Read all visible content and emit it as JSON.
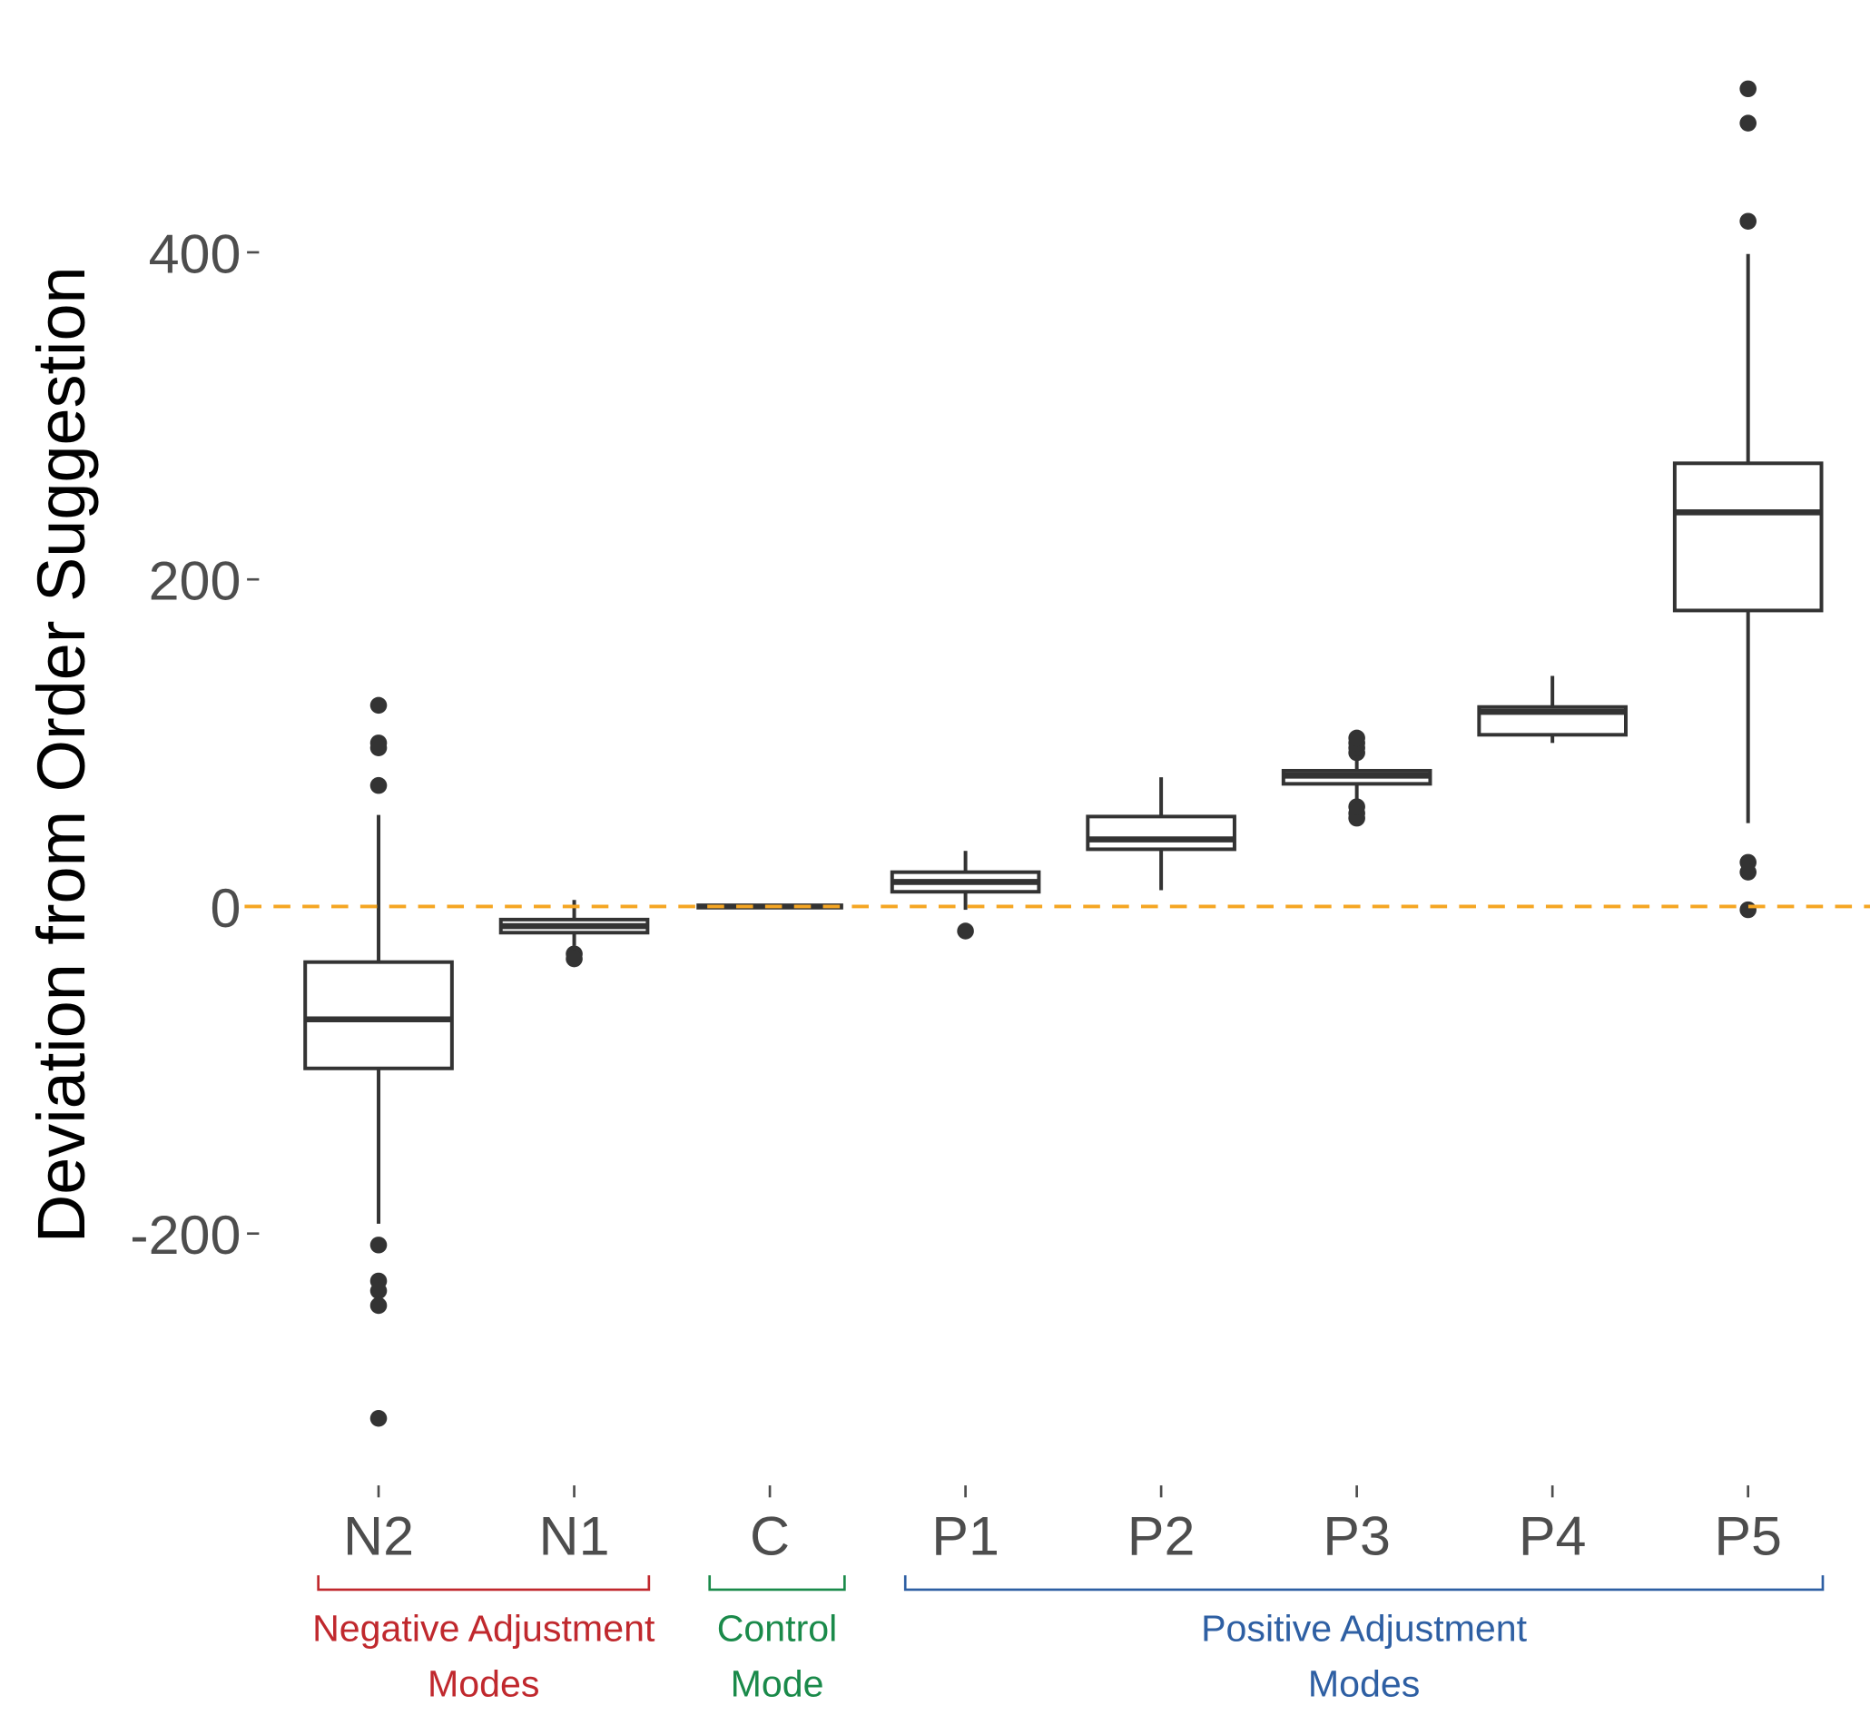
{
  "chart_data": {
    "type": "box",
    "ylabel": "Deviation from Order Suggestion",
    "categories": [
      "N2",
      "N1",
      "C",
      "P1",
      "P2",
      "P3",
      "P4",
      "P5"
    ],
    "boxes": [
      {
        "min": -194,
        "q1": -99,
        "median": -69,
        "q3": -34,
        "max": 56,
        "outliers": [
          123,
          100,
          97,
          74,
          -207,
          -229,
          -235,
          -244,
          -313
        ]
      },
      {
        "min": -24,
        "q1": -16,
        "median": -12,
        "q3": -8,
        "max": 4,
        "outliers": [
          -29,
          -32
        ]
      },
      {
        "min": 0,
        "q1": 0,
        "median": 0,
        "q3": 0,
        "max": 0,
        "outliers": []
      },
      {
        "min": -2,
        "q1": 9,
        "median": 15,
        "q3": 21,
        "max": 34,
        "outliers": [
          -15
        ]
      },
      {
        "min": 10,
        "q1": 35,
        "median": 41,
        "q3": 55,
        "max": 79,
        "outliers": []
      },
      {
        "min": 66,
        "q1": 75,
        "median": 80,
        "q3": 83,
        "max": 91,
        "outliers": [
          94,
          97,
          100,
          103,
          54,
          57,
          61
        ]
      },
      {
        "min": 100,
        "q1": 105,
        "median": 119,
        "q3": 122,
        "max": 141,
        "outliers": []
      },
      {
        "min": 51,
        "q1": 181,
        "median": 241,
        "q3": 271,
        "max": 399,
        "outliers": [
          500,
          479,
          419,
          27,
          21,
          -2
        ]
      }
    ],
    "box_color": "#333333",
    "ylim": [
      -354,
      525
    ],
    "yticks": [
      -200,
      0,
      200,
      400
    ],
    "reference_line": {
      "value": 0,
      "color": "#f5a623"
    },
    "groups": [
      {
        "label_lines": [
          "Negative Adjustment",
          "Modes"
        ],
        "color": "#c0282d",
        "members": [
          0,
          1
        ]
      },
      {
        "label_lines": [
          "Control",
          "Mode"
        ],
        "color": "#1a8a4a",
        "members": [
          2,
          2
        ]
      },
      {
        "label_lines": [
          "Positive Adjustment",
          "Modes"
        ],
        "color": "#2e5fa3",
        "members": [
          3,
          7
        ]
      }
    ]
  }
}
